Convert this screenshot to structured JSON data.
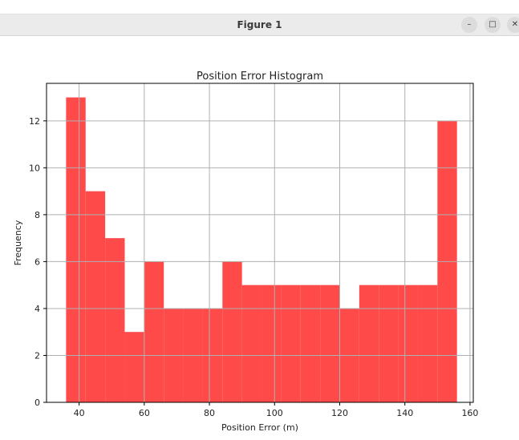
{
  "window": {
    "title": "Figure 1",
    "minimize_icon": "minimize-icon",
    "maximize_icon": "maximize-icon",
    "close_icon": "close-icon",
    "minimize_glyph": "–",
    "maximize_glyph": "□",
    "close_glyph": "✕"
  },
  "chart_data": {
    "type": "bar",
    "title": "Position Error Histogram",
    "xlabel": "Position Error (m)",
    "ylabel": "Frequency",
    "xlim": [
      30,
      161
    ],
    "ylim": [
      0,
      13.6
    ],
    "xticks": [
      40,
      60,
      80,
      100,
      120,
      140,
      160
    ],
    "yticks": [
      0,
      2,
      4,
      6,
      8,
      10,
      12
    ],
    "grid": true,
    "color": "#ff4a4a",
    "bin_edges": [
      36,
      42,
      48,
      54,
      60,
      66,
      72,
      78,
      84,
      90,
      96,
      102,
      108,
      114,
      120,
      126,
      132,
      138,
      144,
      150,
      156
    ],
    "values": [
      13,
      9,
      7,
      3,
      6,
      4,
      4,
      4,
      6,
      5,
      5,
      5,
      5,
      5,
      4,
      5,
      5,
      5,
      5,
      12
    ]
  }
}
